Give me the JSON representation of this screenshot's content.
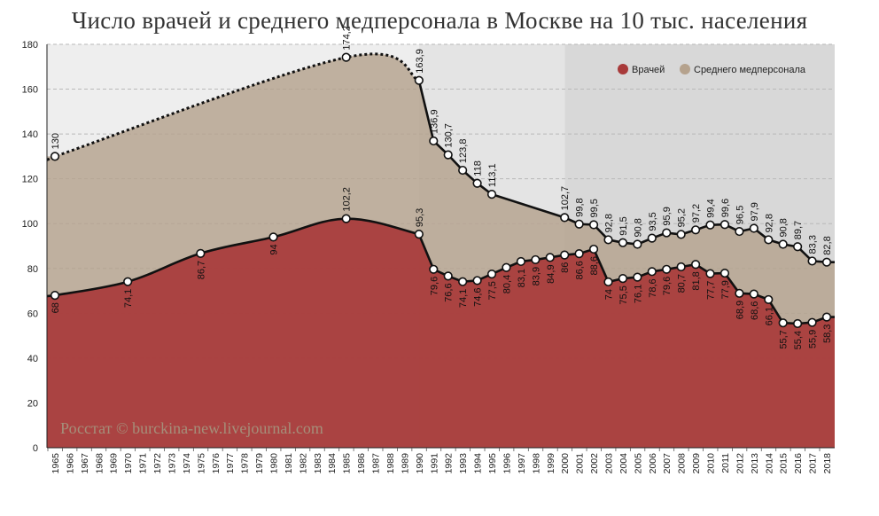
{
  "chart_data": {
    "type": "area",
    "title": "Число врачей и среднего медперсонала в Москве на 10 тыс. населения",
    "watermark": "Росстат © burckina-new.livejournal.com",
    "ylim": [
      0,
      180
    ],
    "yticks": [
      0,
      20,
      40,
      60,
      80,
      100,
      120,
      140,
      160,
      180
    ],
    "xlim": [
      1965,
      2018
    ],
    "grid": true,
    "legend_position": "top-right",
    "periods": [
      {
        "from": 1965,
        "to": 1990,
        "color": "#eeeeee"
      },
      {
        "from": 1990,
        "to": 2000,
        "color": "#e4e4e4"
      },
      {
        "from": 2000,
        "to": 2018,
        "color": "#d8d8d8"
      }
    ],
    "series": [
      {
        "name": "Врачей",
        "color": "#a83a3a",
        "points": [
          {
            "x": 1965,
            "y": 68,
            "label": "68"
          },
          {
            "x": 1970,
            "y": 74.1,
            "label": "74,1"
          },
          {
            "x": 1975,
            "y": 86.7,
            "label": "86,7"
          },
          {
            "x": 1980,
            "y": 94,
            "label": "94"
          },
          {
            "x": 1985,
            "y": 102.2,
            "label": "102,2"
          },
          {
            "x": 1990,
            "y": 95.3,
            "label": "95,3"
          },
          {
            "x": 1991,
            "y": 79.6,
            "label": "79,6"
          },
          {
            "x": 1992,
            "y": 76.6,
            "label": "76,6"
          },
          {
            "x": 1993,
            "y": 74.1,
            "label": "74,1"
          },
          {
            "x": 1994,
            "y": 74.6,
            "label": "74,6"
          },
          {
            "x": 1995,
            "y": 77.5,
            "label": "77,5"
          },
          {
            "x": 1996,
            "y": 80.4,
            "label": "80,4"
          },
          {
            "x": 1997,
            "y": 83.1,
            "label": "83,1"
          },
          {
            "x": 1998,
            "y": 83.9,
            "label": "83,9"
          },
          {
            "x": 1999,
            "y": 84.9,
            "label": "84,9"
          },
          {
            "x": 2000,
            "y": 86,
            "label": "86"
          },
          {
            "x": 2001,
            "y": 86.6,
            "label": "86,6"
          },
          {
            "x": 2002,
            "y": 88.6,
            "label": "88,6"
          },
          {
            "x": 2003,
            "y": 74,
            "label": "74"
          },
          {
            "x": 2004,
            "y": 75.5,
            "label": "75,5"
          },
          {
            "x": 2005,
            "y": 76.1,
            "label": "76,1"
          },
          {
            "x": 2006,
            "y": 78.6,
            "label": "78,6"
          },
          {
            "x": 2007,
            "y": 79.6,
            "label": "79,6"
          },
          {
            "x": 2008,
            "y": 80.7,
            "label": "80,7"
          },
          {
            "x": 2009,
            "y": 81.8,
            "label": "81,8"
          },
          {
            "x": 2010,
            "y": 77.7,
            "label": "77,7"
          },
          {
            "x": 2011,
            "y": 77.9,
            "label": "77,9"
          },
          {
            "x": 2012,
            "y": 68.9,
            "label": "68,9"
          },
          {
            "x": 2013,
            "y": 68.6,
            "label": "68,6"
          },
          {
            "x": 2014,
            "y": 66.1,
            "label": "66,1"
          },
          {
            "x": 2015,
            "y": 55.7,
            "label": "55,7"
          },
          {
            "x": 2016,
            "y": 55.4,
            "label": "55,4"
          },
          {
            "x": 2017,
            "y": 55.9,
            "label": "55,9"
          },
          {
            "x": 2018,
            "y": 58.3,
            "label": "58,3"
          }
        ]
      },
      {
        "name": "Среднего медперсонала",
        "color": "#b5a28d",
        "points": [
          {
            "x": 1965,
            "y": 130,
            "label": "130"
          },
          {
            "x": 1985,
            "y": 174.2,
            "label": "174,2"
          },
          {
            "x": 1990,
            "y": 163.9,
            "label": "163,9"
          },
          {
            "x": 1991,
            "y": 136.9,
            "label": "136,9"
          },
          {
            "x": 1992,
            "y": 130.7,
            "label": "130,7"
          },
          {
            "x": 1993,
            "y": 123.8,
            "label": "123,8"
          },
          {
            "x": 1994,
            "y": 118,
            "label": "118"
          },
          {
            "x": 1995,
            "y": 113.1,
            "label": "113,1"
          },
          {
            "x": 2000,
            "y": 102.7,
            "label": "102,7"
          },
          {
            "x": 2001,
            "y": 99.8,
            "label": "99,8"
          },
          {
            "x": 2002,
            "y": 99.5,
            "label": "99,5"
          },
          {
            "x": 2003,
            "y": 92.8,
            "label": "92,8"
          },
          {
            "x": 2004,
            "y": 91.5,
            "label": "91,5"
          },
          {
            "x": 2005,
            "y": 90.8,
            "label": "90,8"
          },
          {
            "x": 2006,
            "y": 93.5,
            "label": "93,5"
          },
          {
            "x": 2007,
            "y": 95.9,
            "label": "95,9"
          },
          {
            "x": 2008,
            "y": 95.2,
            "label": "95,2"
          },
          {
            "x": 2009,
            "y": 97.2,
            "label": "97,2"
          },
          {
            "x": 2010,
            "y": 99.4,
            "label": "99,4"
          },
          {
            "x": 2011,
            "y": 99.6,
            "label": "99,6"
          },
          {
            "x": 2012,
            "y": 96.5,
            "label": "96,5"
          },
          {
            "x": 2013,
            "y": 97.9,
            "label": "97,9"
          },
          {
            "x": 2014,
            "y": 92.8,
            "label": "92,8"
          },
          {
            "x": 2015,
            "y": 90.8,
            "label": "90,8"
          },
          {
            "x": 2016,
            "y": 89.7,
            "label": "89,7"
          },
          {
            "x": 2017,
            "y": 83.3,
            "label": "83,3"
          },
          {
            "x": 2018,
            "y": 82.8,
            "label": "82,8"
          }
        ]
      }
    ]
  }
}
